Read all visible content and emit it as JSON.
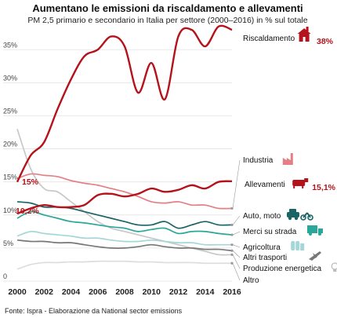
{
  "chart_data": {
    "type": "line",
    "title": "Aumentano le emissioni da riscaldamento e allevamenti",
    "subtitle": "PM 2,5 primario e secondario in Italia per settore (2000–2016) in % sul totale",
    "source": "Fonte: Ispra - Elaborazione da National sector emissions",
    "x": [
      2000,
      2001,
      2002,
      2003,
      2004,
      2005,
      2006,
      2007,
      2008,
      2009,
      2010,
      2011,
      2012,
      2013,
      2014,
      2015,
      2016
    ],
    "x_ticks": [
      "2000",
      "2002",
      "2004",
      "2006",
      "2008",
      "2010",
      "2012",
      "2014",
      "2016"
    ],
    "y_ticks": [
      "0",
      "5%",
      "10%",
      "15%",
      "20%",
      "25%",
      "30%",
      "35%"
    ],
    "ylim": [
      0,
      38
    ],
    "grid": true,
    "series": [
      {
        "name": "Riscaldamento",
        "color": "#b5121b",
        "icon": "house-chimney-icon",
        "end_label": "38%",
        "start_label": "15%",
        "values": [
          15.0,
          19.0,
          21.0,
          26.0,
          30.5,
          34.0,
          35.0,
          37.0,
          35.5,
          28.5,
          33.0,
          27.5,
          37.0,
          38.0,
          35.5,
          38.5,
          38.0
        ]
      },
      {
        "name": "Allevamenti",
        "color": "#b5121b",
        "icon": "cow-icon",
        "end_label": "15,1%",
        "start_label": "10,2%",
        "values": [
          10.2,
          11.0,
          11.5,
          11.2,
          11.2,
          11.5,
          13.0,
          13.2,
          12.8,
          13.2,
          14.0,
          13.5,
          13.8,
          14.5,
          14.0,
          15.0,
          15.1
        ]
      },
      {
        "name": "Industria",
        "color": "#e57f86",
        "icon": "factory-icon",
        "values": [
          15.5,
          16.2,
          16.0,
          15.8,
          15.2,
          14.8,
          14.5,
          14.0,
          13.5,
          12.8,
          12.0,
          11.8,
          12.0,
          11.5,
          11.5,
          11.0,
          11.0
        ]
      },
      {
        "name": "Auto, moto",
        "color": "#1a6466",
        "icon": "car-moto-icon",
        "values": [
          12.0,
          11.8,
          11.2,
          11.2,
          11.0,
          10.5,
          10.0,
          9.5,
          9.0,
          8.5,
          8.5,
          9.0,
          8.0,
          8.5,
          9.0,
          8.5,
          8.5
        ]
      },
      {
        "name": "Merci su strada",
        "color": "#2aa79b",
        "icon": "truck-icon",
        "values": [
          9.5,
          10.5,
          10.0,
          9.5,
          9.0,
          8.8,
          8.5,
          8.2,
          8.0,
          7.5,
          7.8,
          8.0,
          7.2,
          7.5,
          7.5,
          7.2,
          7.0
        ]
      },
      {
        "name": "Agricoltura",
        "color": "#a5d6d8",
        "icon": "silo-icon",
        "values": [
          6.8,
          7.5,
          7.2,
          7.0,
          6.8,
          6.5,
          6.5,
          6.2,
          6.0,
          6.0,
          6.2,
          6.0,
          5.8,
          5.8,
          5.5,
          5.5,
          5.5
        ]
      },
      {
        "name": "Altri trasporti",
        "color": "#777777",
        "icon": "plane-icon",
        "values": [
          6.2,
          6.0,
          6.0,
          5.8,
          5.8,
          5.5,
          5.2,
          5.0,
          5.0,
          5.2,
          5.5,
          5.2,
          5.0,
          5.0,
          4.8,
          4.8,
          4.6
        ]
      },
      {
        "name": "Produzione energetica",
        "color": "#c8c8c8",
        "icon": "lightbulb-icon",
        "values": [
          23.0,
          17.0,
          14.0,
          13.5,
          12.0,
          10.5,
          9.0,
          8.0,
          7.5,
          7.0,
          6.5,
          6.0,
          5.5,
          5.0,
          4.5,
          4.0,
          4.0
        ]
      },
      {
        "name": "Altro",
        "color": "#dddddd",
        "icon": "",
        "values": [
          1.8,
          2.5,
          2.8,
          2.8,
          2.9,
          2.9,
          3.0,
          3.0,
          3.0,
          2.9,
          2.9,
          2.8,
          2.8,
          2.8,
          2.7,
          2.7,
          2.7
        ]
      }
    ]
  }
}
